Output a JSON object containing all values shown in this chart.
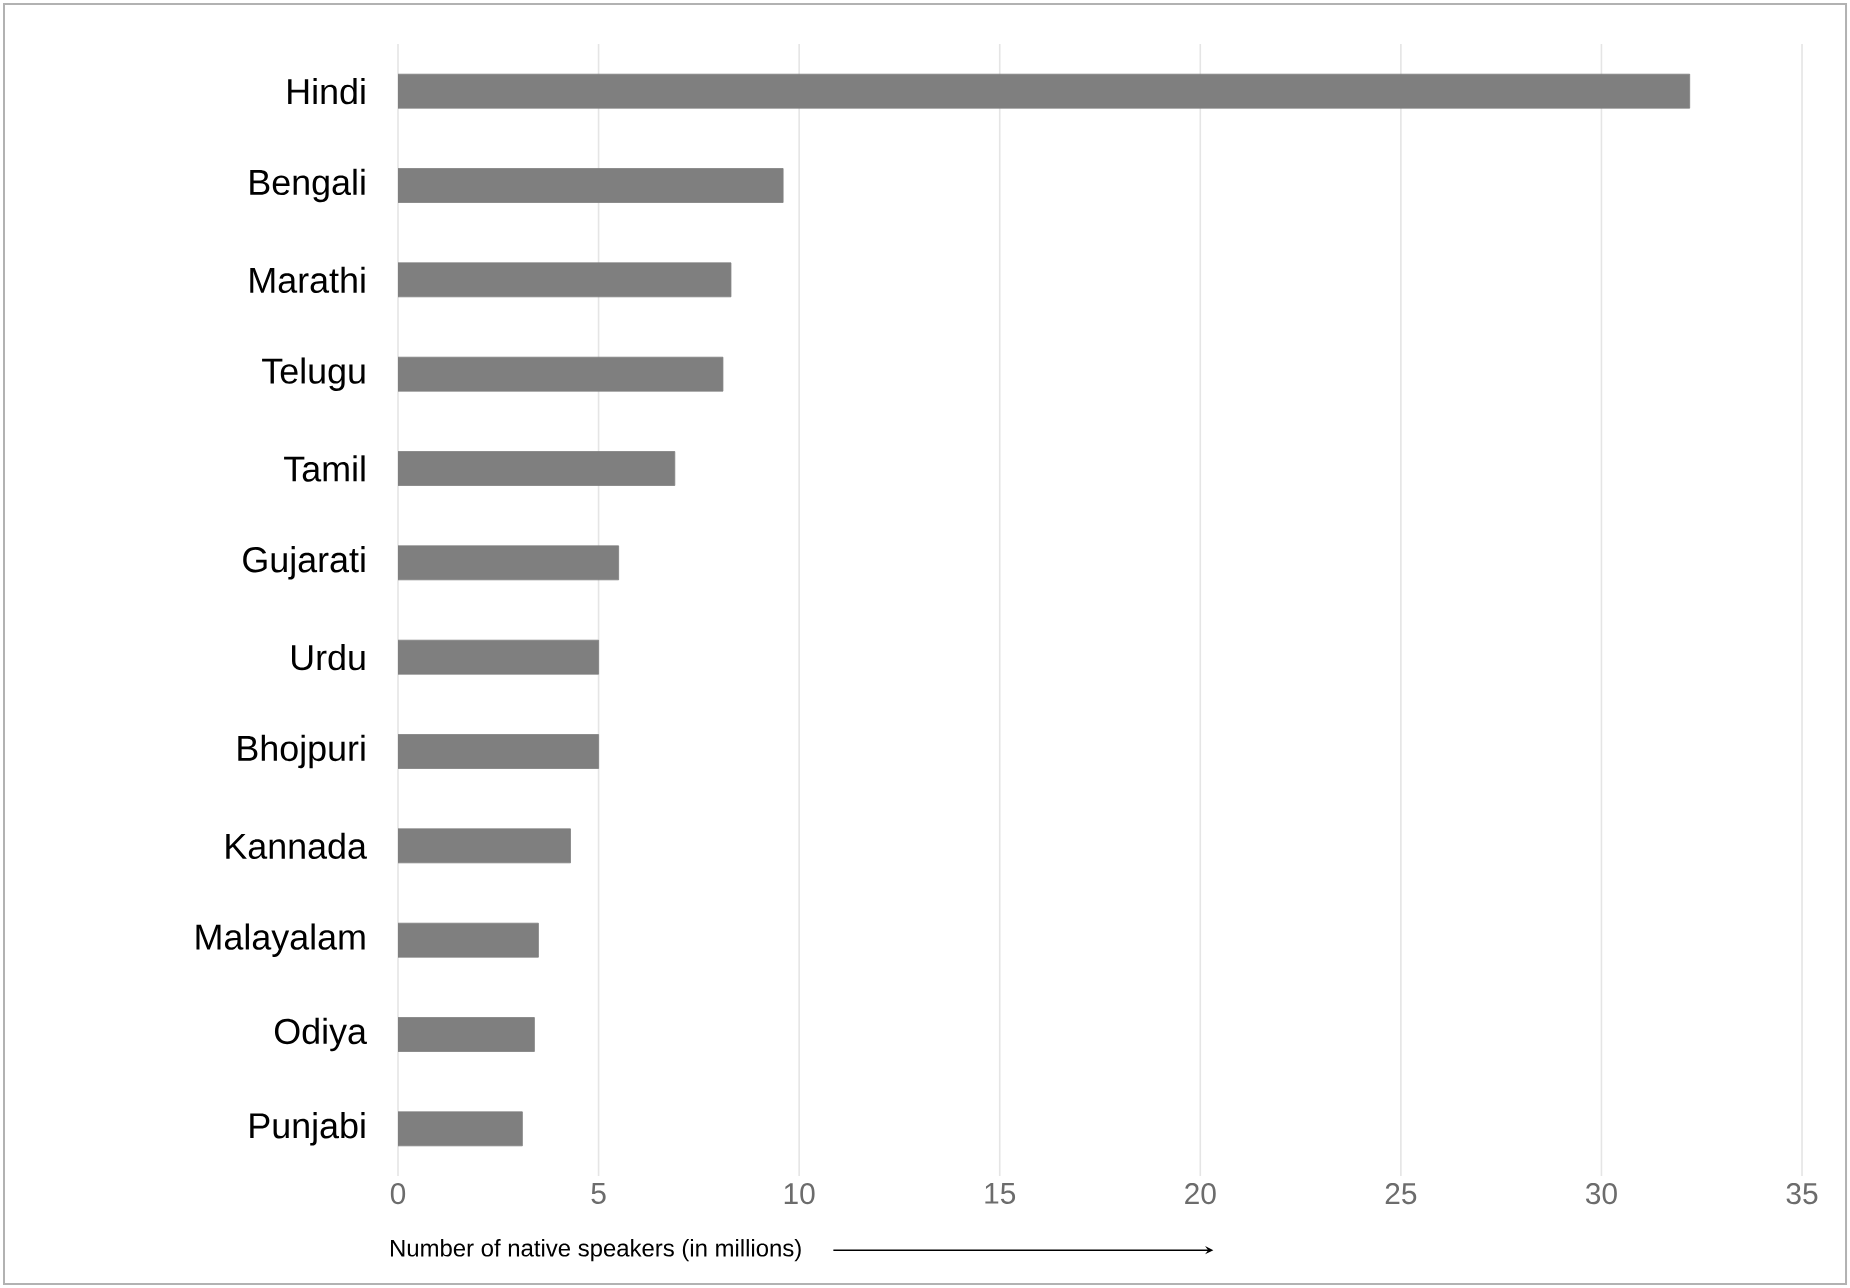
{
  "chart_data": {
    "type": "bar",
    "orientation": "horizontal",
    "categories": [
      "Hindi",
      "Bengali",
      "Marathi",
      "Telugu",
      "Tamil",
      "Gujarati",
      "Urdu",
      "Bhojpuri",
      "Kannada",
      "Malayalam",
      "Odiya",
      "Punjabi"
    ],
    "values": [
      32.2,
      9.6,
      8.3,
      8.1,
      6.9,
      5.5,
      5.0,
      5.0,
      4.3,
      3.5,
      3.4,
      3.1
    ],
    "color": "#7f7f7f",
    "xlabel": "Number of native speakers (in millions)",
    "xlim": [
      0,
      35
    ],
    "xticks": [
      0,
      5,
      10,
      15,
      20,
      25,
      30,
      35
    ],
    "grid": "x"
  }
}
